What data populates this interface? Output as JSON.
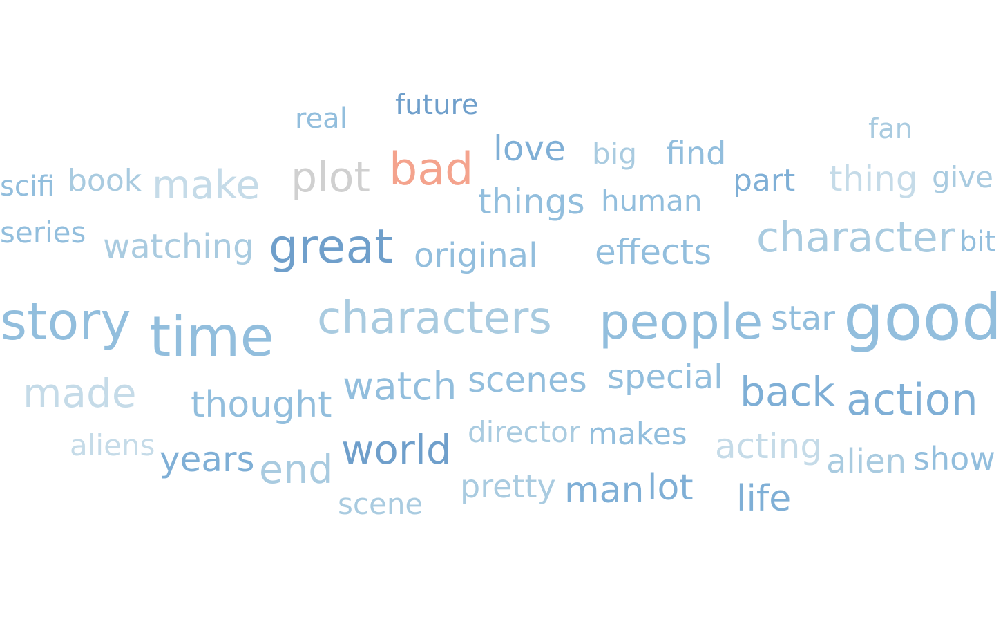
{
  "word_cloud": {
    "palette": {
      "pale": "#c5dbe8",
      "light": "#a9cbe0",
      "mid": "#92bedd",
      "strong": "#7fafd6",
      "deep": "#6f9fcb",
      "gray": "#d0d0d0",
      "salmon": "#f4a38d"
    },
    "words": [
      {
        "id": "future",
        "text": "future",
        "color": "deep"
      },
      {
        "id": "real",
        "text": "real",
        "color": "mid"
      },
      {
        "id": "fan",
        "text": "fan",
        "color": "light"
      },
      {
        "id": "love",
        "text": "love",
        "color": "strong"
      },
      {
        "id": "big",
        "text": "big",
        "color": "light"
      },
      {
        "id": "find",
        "text": "find",
        "color": "mid"
      },
      {
        "id": "bad",
        "text": "bad",
        "color": "salmon"
      },
      {
        "id": "scifi",
        "text": "scifi",
        "color": "mid"
      },
      {
        "id": "book",
        "text": "book",
        "color": "light"
      },
      {
        "id": "make",
        "text": "make",
        "color": "pale"
      },
      {
        "id": "plot",
        "text": "plot",
        "color": "gray"
      },
      {
        "id": "part",
        "text": "part",
        "color": "strong"
      },
      {
        "id": "thing",
        "text": "thing",
        "color": "pale"
      },
      {
        "id": "give",
        "text": "give",
        "color": "light"
      },
      {
        "id": "things",
        "text": "things",
        "color": "mid"
      },
      {
        "id": "human",
        "text": "human",
        "color": "mid"
      },
      {
        "id": "series",
        "text": "series",
        "color": "mid"
      },
      {
        "id": "watching",
        "text": "watching",
        "color": "light"
      },
      {
        "id": "great",
        "text": "great",
        "color": "deep"
      },
      {
        "id": "original",
        "text": "original",
        "color": "mid"
      },
      {
        "id": "effects",
        "text": "effects",
        "color": "mid"
      },
      {
        "id": "character",
        "text": "character",
        "color": "light"
      },
      {
        "id": "bit",
        "text": "bit",
        "color": "mid"
      },
      {
        "id": "story",
        "text": "story",
        "color": "mid"
      },
      {
        "id": "time",
        "text": "time",
        "color": "mid"
      },
      {
        "id": "characters",
        "text": "characters",
        "color": "light"
      },
      {
        "id": "people",
        "text": "people",
        "color": "mid"
      },
      {
        "id": "star",
        "text": "star",
        "color": "mid"
      },
      {
        "id": "good",
        "text": "good",
        "color": "mid"
      },
      {
        "id": "made",
        "text": "made",
        "color": "pale"
      },
      {
        "id": "thought",
        "text": "thought",
        "color": "mid"
      },
      {
        "id": "watch",
        "text": "watch",
        "color": "mid"
      },
      {
        "id": "scenes",
        "text": "scenes",
        "color": "mid"
      },
      {
        "id": "special",
        "text": "special",
        "color": "mid"
      },
      {
        "id": "back",
        "text": "back",
        "color": "strong"
      },
      {
        "id": "action",
        "text": "action",
        "color": "strong"
      },
      {
        "id": "aliens",
        "text": "aliens",
        "color": "pale"
      },
      {
        "id": "years",
        "text": "years",
        "color": "strong"
      },
      {
        "id": "end",
        "text": "end",
        "color": "light"
      },
      {
        "id": "world",
        "text": "world",
        "color": "deep"
      },
      {
        "id": "director",
        "text": "director",
        "color": "light"
      },
      {
        "id": "makes",
        "text": "makes",
        "color": "mid"
      },
      {
        "id": "acting",
        "text": "acting",
        "color": "pale"
      },
      {
        "id": "alien",
        "text": "alien",
        "color": "light"
      },
      {
        "id": "show",
        "text": "show",
        "color": "mid"
      },
      {
        "id": "pretty",
        "text": "pretty",
        "color": "light"
      },
      {
        "id": "man",
        "text": "man",
        "color": "strong"
      },
      {
        "id": "lot",
        "text": "lot",
        "color": "strong"
      },
      {
        "id": "life",
        "text": "life",
        "color": "strong"
      },
      {
        "id": "scene",
        "text": "scene",
        "color": "light"
      }
    ]
  }
}
